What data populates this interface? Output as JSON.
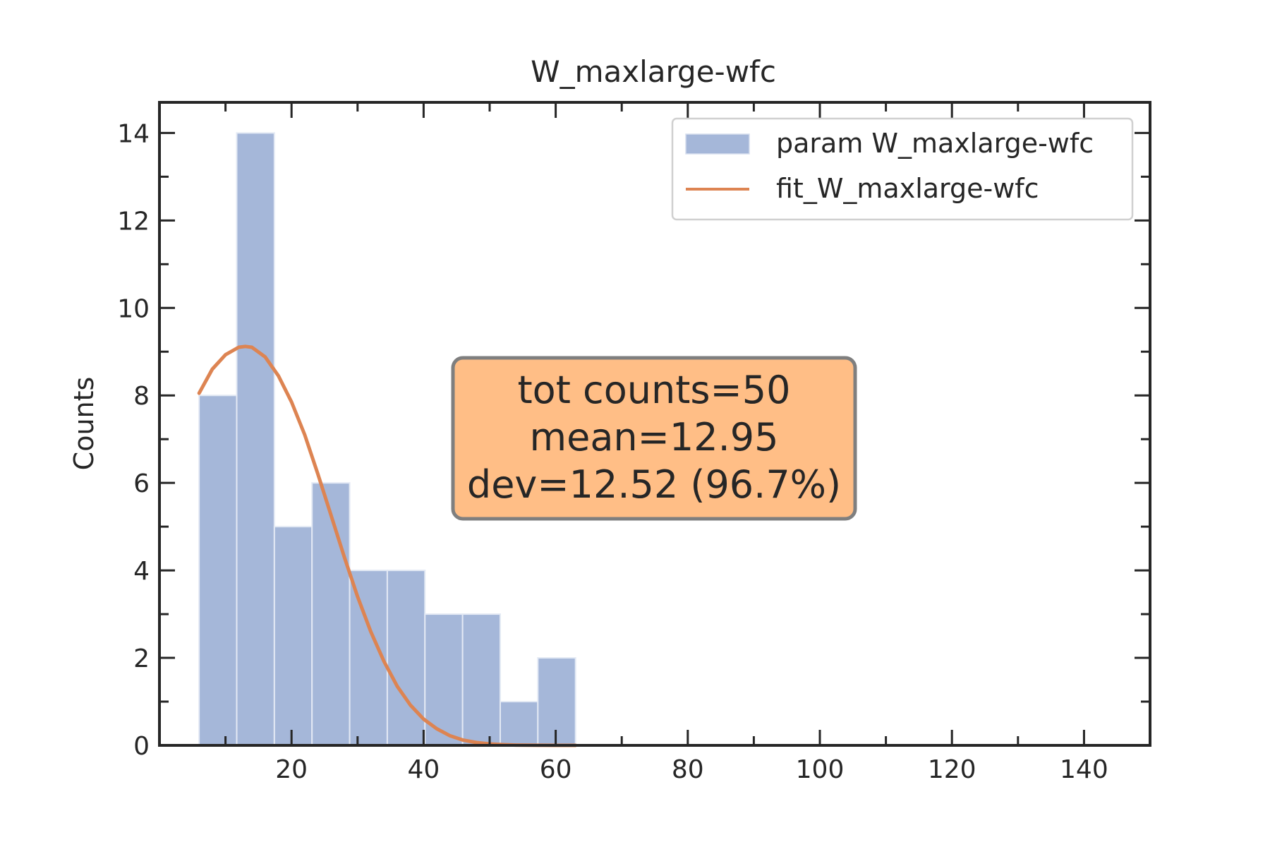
{
  "chart_data": {
    "type": "bar",
    "title": "W_maxlarge-wfc",
    "xlabel": "",
    "ylabel": "Counts",
    "xlim": [
      0,
      150
    ],
    "ylim": [
      0,
      14.7
    ],
    "x_ticks": [
      20,
      40,
      60,
      80,
      100,
      120,
      140
    ],
    "y_ticks": [
      0,
      2,
      4,
      6,
      8,
      10,
      12,
      14
    ],
    "bin_edges": [
      6.0,
      11.7,
      17.4,
      23.1,
      28.8,
      34.5,
      40.2,
      45.9,
      51.6,
      57.3,
      63.0
    ],
    "series": [
      {
        "name": "param W_maxlarge-wfc",
        "type": "histogram",
        "color": "#a5b7d9",
        "values": [
          8,
          14,
          5,
          6,
          4,
          4,
          3,
          3,
          1,
          2
        ]
      },
      {
        "name": "fit_W_maxlarge-wfc",
        "type": "line",
        "color": "#dd8452",
        "x": [
          6,
          8,
          10,
          12,
          13,
          14,
          16,
          18,
          20,
          22,
          24,
          26,
          28,
          30,
          32,
          34,
          36,
          38,
          40,
          42,
          44,
          46,
          48,
          50,
          52,
          54,
          56,
          58,
          60,
          63
        ],
        "y": [
          8.05,
          8.6,
          8.93,
          9.1,
          9.12,
          9.1,
          8.88,
          8.45,
          7.85,
          7.1,
          6.2,
          5.25,
          4.3,
          3.4,
          2.6,
          1.92,
          1.35,
          0.92,
          0.6,
          0.38,
          0.22,
          0.12,
          0.065,
          0.033,
          0.016,
          0.007,
          0.003,
          0.001,
          0.0005,
          0.0
        ]
      }
    ],
    "legend": {
      "position": "top-right",
      "entries": [
        "param W_maxlarge-wfc",
        "fit_W_maxlarge-wfc"
      ]
    },
    "annotation": {
      "lines": [
        "tot counts=50",
        "mean=12.95",
        "dev=12.52 (96.7%)"
      ],
      "background": "#ffbe86",
      "border": "#7f7f7f"
    },
    "grid": false
  }
}
